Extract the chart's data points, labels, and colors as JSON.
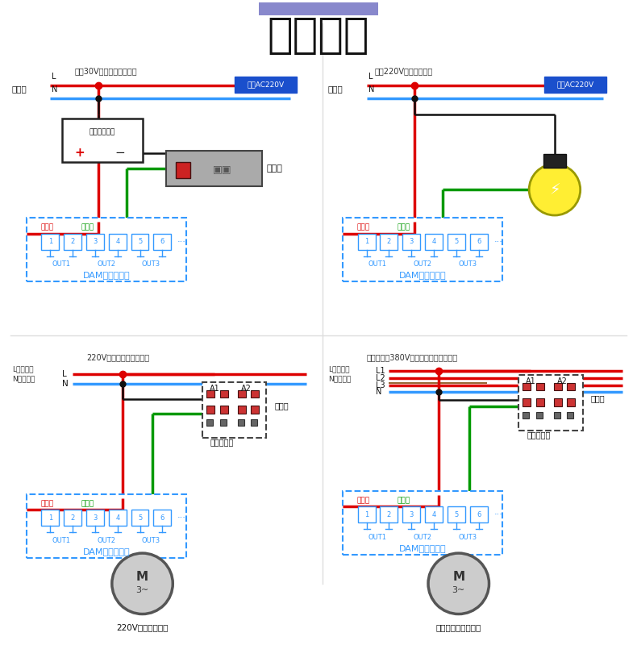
{
  "title": "输出接线",
  "title_fontsize": 36,
  "bg_color": "#ffffff",
  "accent_color": "#7777bb",
  "panel1_title": "直流30V以下设备接线方法",
  "panel2_title": "交流220V设备接线方法",
  "panel3_title": "220V接交流接触器接线图",
  "panel4_title": "带零线交流380V接电机、泵等设备接线",
  "label_source": "电源端",
  "label_coil": "线圈AC220V",
  "label_device_power": "被控设备电源",
  "label_solenoid": "电磁阀",
  "label_common": "公共端",
  "label_no": "常开端",
  "label_dam": "DAM数采控制器",
  "label_out1": "OUT1",
  "label_out2": "OUT2",
  "label_out3": "OUT3",
  "label_main_contact": "主触点",
  "label_contactor": "交流接触器",
  "label_p3_device": "220V功率较大设备",
  "label_p4_device": "电机、泵等大型设备",
  "label_p3_L": "L代表火线",
  "label_p3_N": "N代表零线",
  "label_p4_L": "L代表火线",
  "label_p4_N": "N代表零线",
  "red": "#dd0000",
  "blue": "#3399ff",
  "green": "#009900",
  "black": "#111111",
  "dark_blue_box": "#1a4fcc",
  "terminal_blue": "#3399ff",
  "dashed_blue": "#3399ff",
  "contactor_gray": "#888888"
}
